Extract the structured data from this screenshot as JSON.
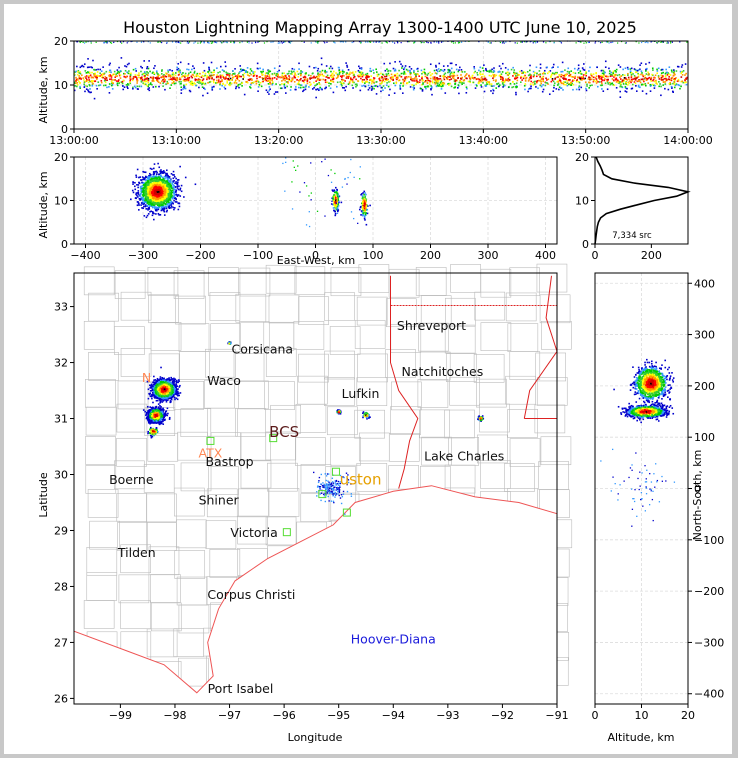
{
  "title": "Houston Lightning Mapping Array 1300-1400 UTC June 10, 2025",
  "colors": {
    "sources": [
      "#0000cc",
      "#3399ff",
      "#00cc00",
      "#33cc33",
      "#ffff00",
      "#ff9900",
      "#ff0000",
      "#cc0000",
      "#000000"
    ],
    "state_border": "#dd2222",
    "coast": "#ee5555",
    "county": "#bbbbbb",
    "grid": "#dddddd"
  },
  "source_count": "7,334 src",
  "map_labels": [
    {
      "text": "Shreveport",
      "lon": -93.3,
      "lat": 32.58,
      "color": "#111111",
      "size": 12.5
    },
    {
      "text": "Corsicana",
      "lon": -96.4,
      "lat": 32.16,
      "color": "#111111",
      "size": 12.5
    },
    {
      "text": "Natchitoches",
      "lon": -93.1,
      "lat": 31.76,
      "color": "#111111",
      "size": 12.5
    },
    {
      "text": "Waco",
      "lon": -97.1,
      "lat": 31.6,
      "color": "#111111",
      "size": 12.5
    },
    {
      "text": "Lufkin",
      "lon": -94.6,
      "lat": 31.37,
      "color": "#111111",
      "size": 12.5
    },
    {
      "text": "BCS",
      "lon": -96.0,
      "lat": 30.67,
      "color": "#5a1a1a",
      "size": 15
    },
    {
      "text": "ATX",
      "lon": -97.35,
      "lat": 30.3,
      "color": "#ff8855",
      "size": 12.5
    },
    {
      "text": "Bastrop",
      "lon": -97.0,
      "lat": 30.15,
      "color": "#111111",
      "size": 12.5
    },
    {
      "text": "Lake Charles",
      "lon": -92.7,
      "lat": 30.25,
      "color": "#111111",
      "size": 12.5
    },
    {
      "text": "Boerne",
      "lon": -98.8,
      "lat": 29.83,
      "color": "#111111",
      "size": 12.5
    },
    {
      "text": "uston",
      "lon": -94.6,
      "lat": 29.82,
      "color": "#e6a000",
      "size": 15
    },
    {
      "text": "Shiner",
      "lon": -97.2,
      "lat": 29.46,
      "color": "#111111",
      "size": 12.5
    },
    {
      "text": "Victoria",
      "lon": -96.55,
      "lat": 28.88,
      "color": "#111111",
      "size": 12.5
    },
    {
      "text": "Tilden",
      "lon": -98.7,
      "lat": 28.53,
      "color": "#111111",
      "size": 12.5
    },
    {
      "text": "Corpus Christi",
      "lon": -96.6,
      "lat": 27.78,
      "color": "#111111",
      "size": 12.5
    },
    {
      "text": "Hoover-Diana",
      "lon": -94.0,
      "lat": 26.98,
      "color": "#1a1adb",
      "size": 12.5
    },
    {
      "text": "Port Isabel",
      "lon": -96.8,
      "lat": 26.1,
      "color": "#111111",
      "size": 12.5
    },
    {
      "text": "N",
      "lon": -98.52,
      "lat": 31.65,
      "color": "#ff8855",
      "size": 12.5
    }
  ],
  "chart_data": [
    {
      "type": "scatter",
      "name": "altitude-time",
      "xlabel": "",
      "ylabel": "Altitude, km",
      "xlim": [
        "13:00:00",
        "14:00:00"
      ],
      "ylim": [
        0,
        20
      ],
      "xticks": [
        "13:00:00",
        "13:10:00",
        "13:20:00",
        "13:30:00",
        "13:40:00",
        "13:50:00",
        "14:00:00"
      ],
      "yticks": [
        0,
        10,
        20
      ],
      "description_of_density": {
        "band_center_km": 11.5,
        "band_spread_km": 2.5,
        "sparse_top_km": 20
      }
    },
    {
      "type": "scatter",
      "name": "east-west-altitude",
      "xlabel": "East-West, km",
      "ylabel": "Altitude, km",
      "xlim": [
        -420,
        420
      ],
      "ylim": [
        0,
        20
      ],
      "xticks": [
        -400,
        -300,
        -200,
        -100,
        0,
        100,
        200,
        300,
        400
      ],
      "yticks": [
        0,
        10,
        20
      ],
      "clusters": [
        {
          "x_km": -275,
          "z_km": 12,
          "spread_x": 28,
          "spread_z": 3.5,
          "density": "high"
        },
        {
          "x_km": 35,
          "z_km": 10,
          "spread_x": 5,
          "spread_z": 2.2,
          "density": "low"
        },
        {
          "x_km": 85,
          "z_km": 9,
          "spread_x": 5,
          "spread_z": 2.5,
          "density": "low"
        }
      ]
    },
    {
      "type": "line",
      "name": "altitude-histogram",
      "xlabel": "",
      "ylabel": "",
      "xlim": [
        0,
        330
      ],
      "ylim": [
        0,
        20
      ],
      "xticks": [
        0,
        200
      ],
      "yticks": [
        0,
        10,
        20
      ],
      "altitude_km": [
        0,
        1,
        2,
        3,
        4,
        5,
        6,
        7,
        8,
        9,
        10,
        11,
        12,
        13,
        14,
        15,
        16,
        17,
        18,
        19,
        20
      ],
      "count": [
        0,
        2,
        4,
        6,
        8,
        12,
        20,
        40,
        90,
        150,
        210,
        290,
        330,
        260,
        140,
        60,
        30,
        25,
        18,
        10,
        4
      ]
    },
    {
      "type": "scatter",
      "name": "plan-view-map",
      "xlabel": "Longitude",
      "ylabel": "Latitude",
      "xlim": [
        -99.85,
        -91.0
      ],
      "ylim": [
        25.9,
        33.6
      ],
      "xticks": [
        -99,
        -98,
        -97,
        -96,
        -95,
        -94,
        -93,
        -92,
        -91
      ],
      "yticks": [
        26,
        27,
        28,
        29,
        30,
        31,
        32,
        33
      ],
      "clusters": [
        {
          "lon": -98.2,
          "lat": 31.52,
          "spread": 0.18,
          "density": "high"
        },
        {
          "lon": -98.35,
          "lat": 31.06,
          "spread": 0.12,
          "density": "high"
        },
        {
          "lon": -98.4,
          "lat": 30.77,
          "spread": 0.08,
          "density": "low"
        },
        {
          "lon": -95.15,
          "lat": 29.75,
          "spread": 0.25,
          "density": "sparse"
        },
        {
          "lon": -94.5,
          "lat": 31.06,
          "spread": 0.05,
          "density": "low"
        },
        {
          "lon": -95.0,
          "lat": 31.12,
          "spread": 0.03,
          "density": "low"
        },
        {
          "lon": -97.0,
          "lat": 32.35,
          "spread": 0.02,
          "density": "low"
        },
        {
          "lon": -92.4,
          "lat": 31.0,
          "spread": 0.04,
          "density": "low"
        }
      ],
      "stations": [
        {
          "lon": -97.35,
          "lat": 30.6
        },
        {
          "lon": -96.2,
          "lat": 30.65
        },
        {
          "lon": -95.05,
          "lat": 30.05
        },
        {
          "lon": -94.85,
          "lat": 29.32
        },
        {
          "lon": -95.95,
          "lat": 28.97
        },
        {
          "lon": -95.3,
          "lat": 29.65
        }
      ]
    },
    {
      "type": "scatter",
      "name": "north-south-altitude",
      "xlabel": "Altitude, km",
      "ylabel": "North-South, km",
      "xlim": [
        0,
        20
      ],
      "ylim": [
        -420,
        420
      ],
      "xticks": [
        0,
        10,
        20
      ],
      "yticks": [
        -400,
        -300,
        -200,
        -100,
        0,
        100,
        200,
        300,
        400
      ],
      "clusters": [
        {
          "z_km": 12,
          "y_km": 205,
          "spread_z": 3,
          "spread_y": 28,
          "density": "high"
        },
        {
          "z_km": 11,
          "y_km": 150,
          "spread_z": 3.5,
          "spread_y": 10,
          "density": "high"
        },
        {
          "z_km": 10,
          "y_km": 0,
          "spread_z": 5,
          "spread_y": 45,
          "density": "sparse"
        }
      ]
    }
  ]
}
